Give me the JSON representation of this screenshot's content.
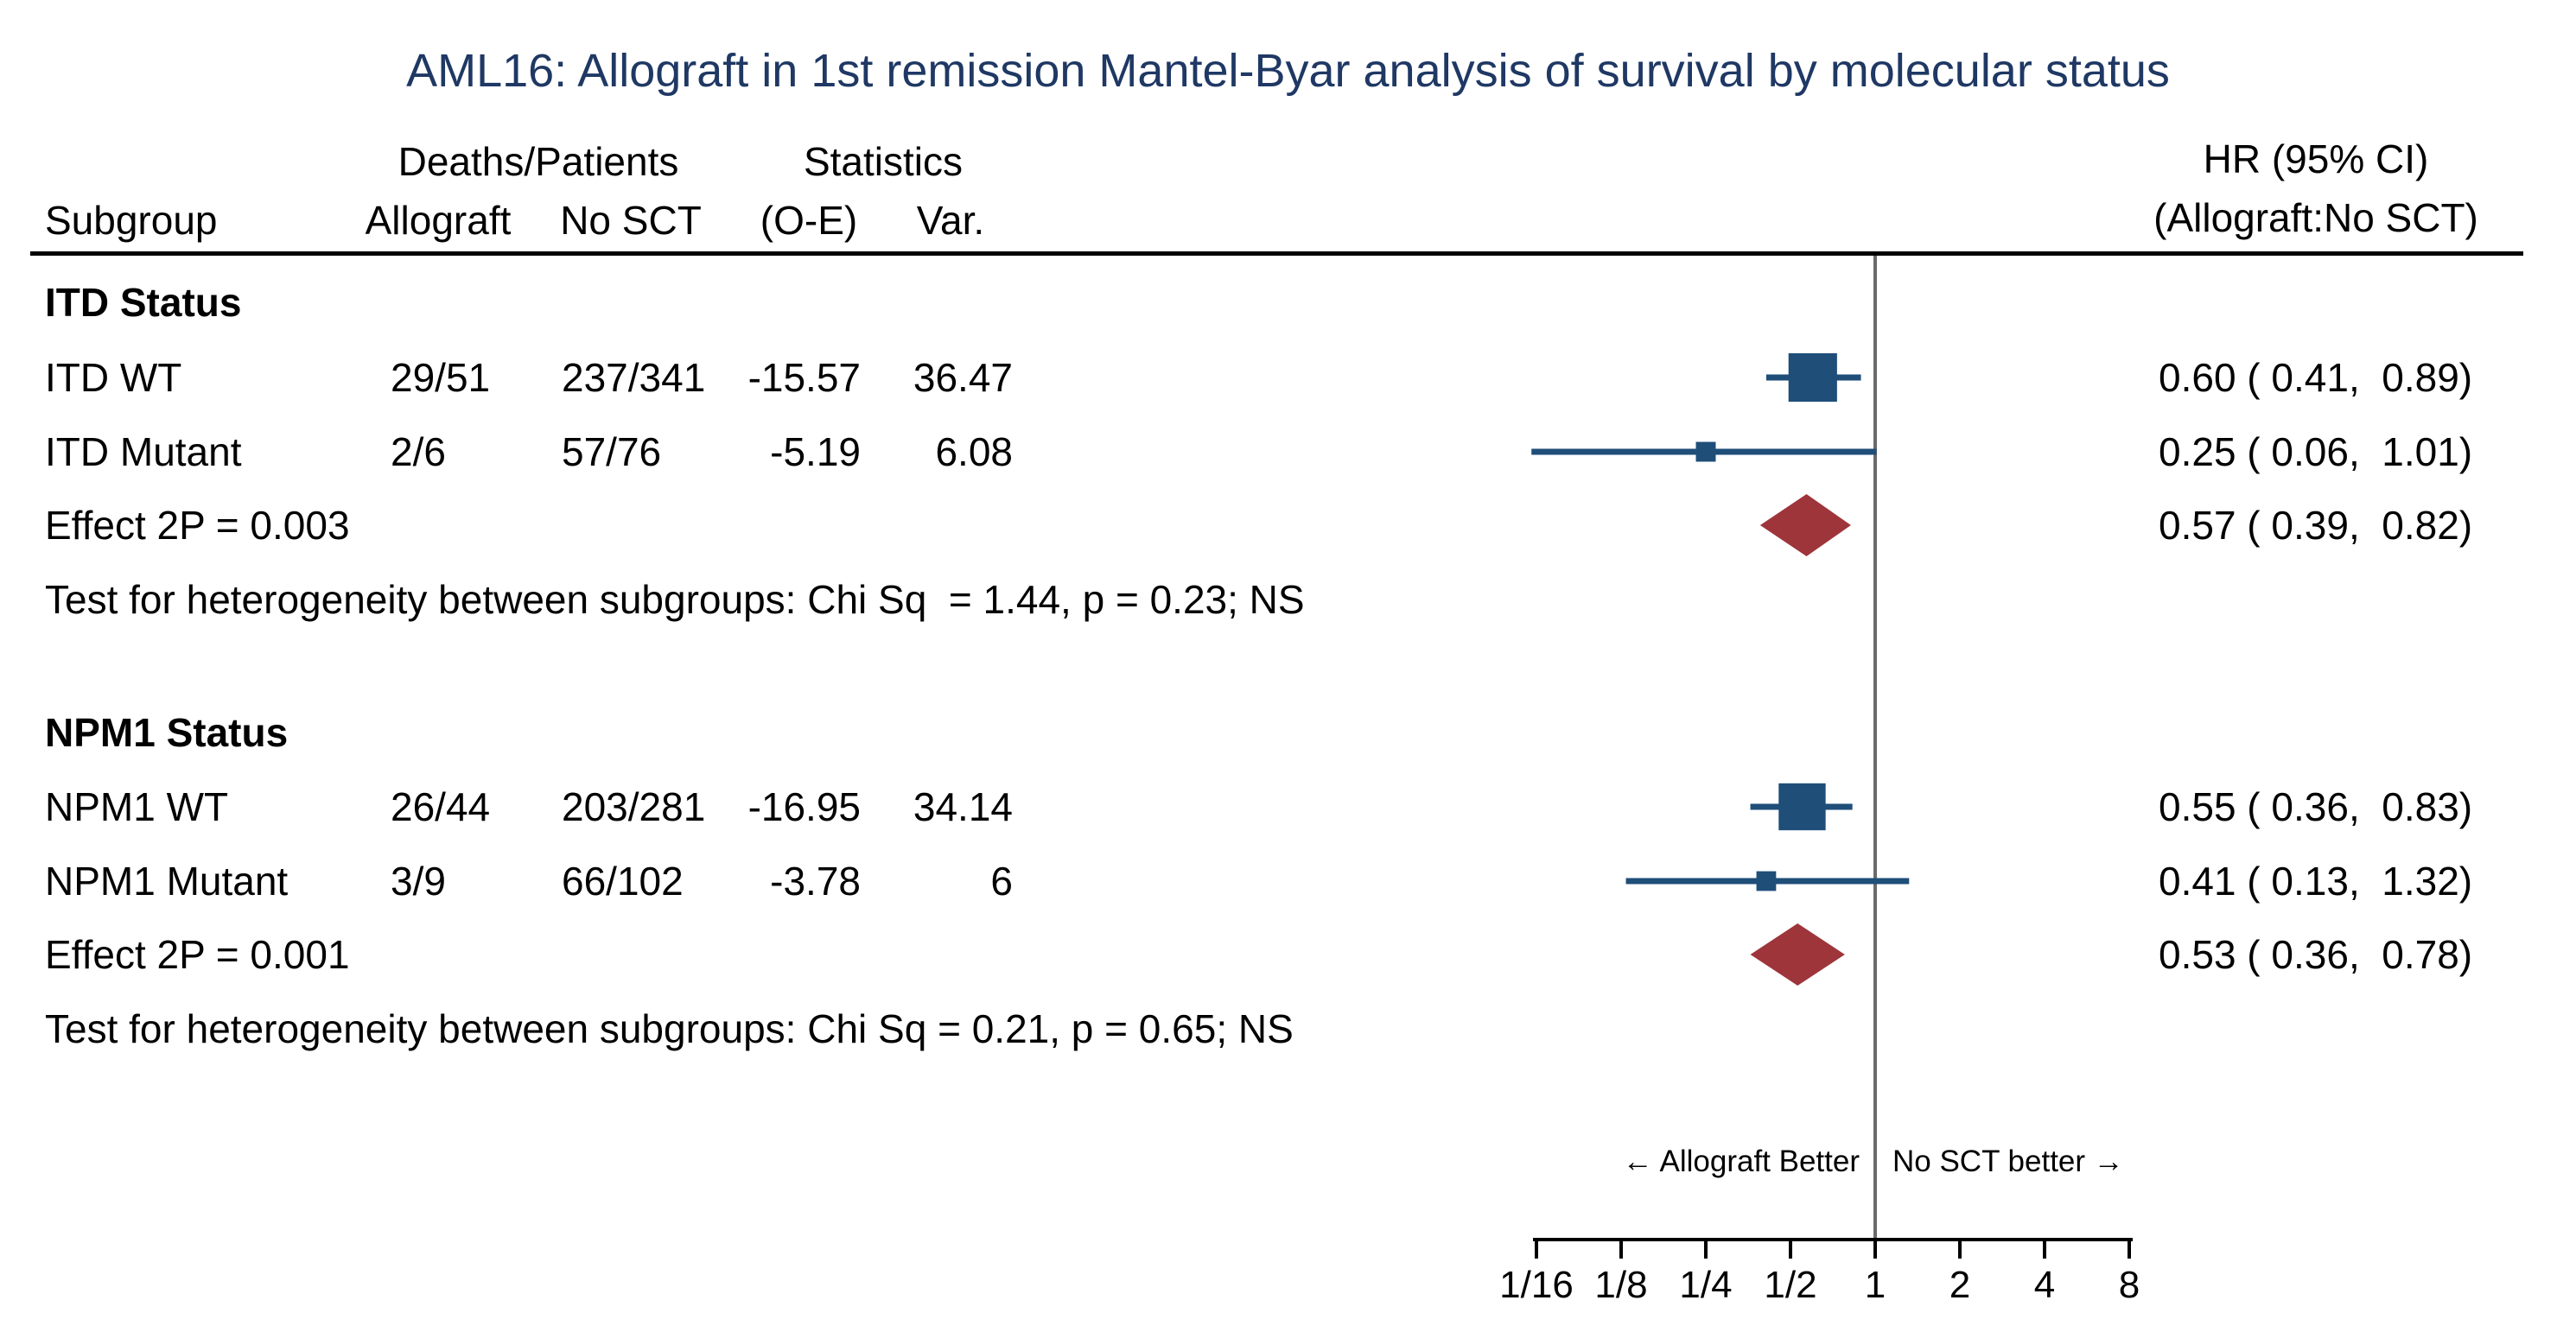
{
  "title": {
    "text": "AML16: Allograft in 1st remission Mantel-Byar analysis of survival by molecular status"
  },
  "columns": {
    "deaths_patients": "Deaths/Patients",
    "statistics": "Statistics",
    "subgroup": "Subgroup",
    "allograft": "Allograft",
    "no_sct": "No SCT",
    "oe": "(O-E)",
    "var": "Var.",
    "hr_line1": "HR (95% CI)",
    "hr_line2": "(Allograft:No SCT)"
  },
  "sections": [
    {
      "header": "ITD Status",
      "rows": [
        {
          "subgroup": "ITD WT",
          "allograft": "29/51",
          "no_sct": "237/341",
          "oe": "-15.57",
          "var": "36.47",
          "hr_ci": "0.60 ( 0.41,  0.89)"
        },
        {
          "subgroup": "ITD Mutant",
          "allograft": "2/6",
          "no_sct": "57/76",
          "oe": "-5.19",
          "var": "6.08",
          "hr_ci": "0.25 ( 0.06,  1.01)"
        }
      ],
      "effect": {
        "label": "Effect 2P = 0.003",
        "hr_ci": "0.57 ( 0.39,  0.82)"
      },
      "heterogeneity": "Test for heterogeneity between subgroups: Chi Sq  = 1.44, p = 0.23; NS"
    },
    {
      "header": "NPM1 Status",
      "rows": [
        {
          "subgroup": "NPM1 WT",
          "allograft": "26/44",
          "no_sct": "203/281",
          "oe": "-16.95",
          "var": "34.14",
          "hr_ci": "0.55 ( 0.36,  0.83)"
        },
        {
          "subgroup": "NPM1 Mutant",
          "allograft": "3/9",
          "no_sct": "66/102",
          "oe": "-3.78",
          "var": "6",
          "hr_ci": "0.41 ( 0.13,  1.32)"
        }
      ],
      "effect": {
        "label": "Effect 2P = 0.001",
        "hr_ci": "0.53 ( 0.36,  0.78)"
      },
      "heterogeneity": "Test for heterogeneity between subgroups: Chi Sq = 0.21, p = 0.65; NS"
    }
  ],
  "direction_labels": {
    "left": "← Allograft Better",
    "right": "No SCT better →"
  },
  "chart_data": {
    "type": "forest",
    "x_scale": "log2",
    "null_line_value": 1,
    "x_tick_labels": [
      "1/16",
      "1/8",
      "1/4",
      "1/2",
      "1",
      "2",
      "4",
      "8"
    ],
    "x_tick_values": [
      0.0625,
      0.125,
      0.25,
      0.5,
      1,
      2,
      4,
      8
    ],
    "x_range": [
      0.0625,
      8
    ],
    "series": [
      {
        "group": "ITD Status",
        "name": "ITD WT",
        "marker": "square",
        "hr": 0.6,
        "ci_low": 0.41,
        "ci_high": 0.89,
        "variance": 36.47
      },
      {
        "group": "ITD Status",
        "name": "ITD Mutant",
        "marker": "square",
        "hr": 0.25,
        "ci_low": 0.06,
        "ci_high": 1.01,
        "variance": 6.08
      },
      {
        "group": "ITD Status",
        "name": "ITD Effect",
        "marker": "diamond",
        "hr": 0.57,
        "ci_low": 0.39,
        "ci_high": 0.82
      },
      {
        "group": "NPM1 Status",
        "name": "NPM1 WT",
        "marker": "square",
        "hr": 0.55,
        "ci_low": 0.36,
        "ci_high": 0.83,
        "variance": 34.14
      },
      {
        "group": "NPM1 Status",
        "name": "NPM1 Mutant",
        "marker": "square",
        "hr": 0.41,
        "ci_low": 0.13,
        "ci_high": 1.32,
        "variance": 6
      },
      {
        "group": "NPM1 Status",
        "name": "NPM1 Effect",
        "marker": "diamond",
        "hr": 0.53,
        "ci_low": 0.36,
        "ci_high": 0.78
      }
    ],
    "colors": {
      "square": "#1f4e79",
      "ci_line": "#1f4e79",
      "diamond": "#9e353b",
      "null_line": "#6a6a6a",
      "axis": "#000000",
      "title": "#1f3864"
    }
  }
}
